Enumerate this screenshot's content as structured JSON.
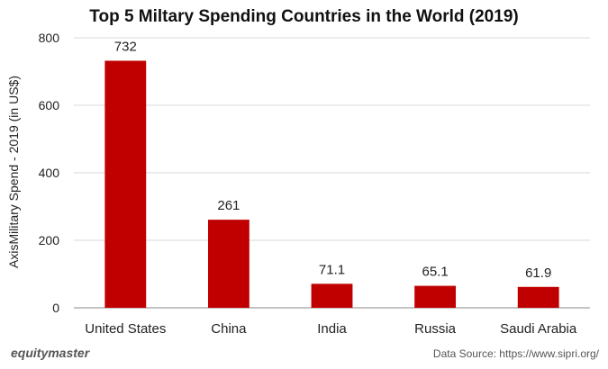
{
  "chart_data": {
    "type": "bar",
    "title": "Top 5 Miltary Spending Countries in the World (2019)",
    "ylabel": "AxisMilitary Spend - 2019 (in US$)",
    "xlabel": "",
    "categories": [
      "United States",
      "China",
      "India",
      "Russia",
      "Saudi Arabia"
    ],
    "values": [
      732,
      261,
      71.1,
      65.1,
      61.9
    ],
    "data_labels": [
      "732",
      "261",
      "71.1",
      "65.1",
      "61.9"
    ],
    "ylim": [
      0,
      800
    ],
    "yticks": [
      0,
      200,
      400,
      600,
      800
    ],
    "bar_color": "#c00000",
    "grid": true,
    "legend": "none"
  },
  "footer": {
    "brand": "equitymaster",
    "source": "Data Source: https://www.sipri.org/"
  }
}
